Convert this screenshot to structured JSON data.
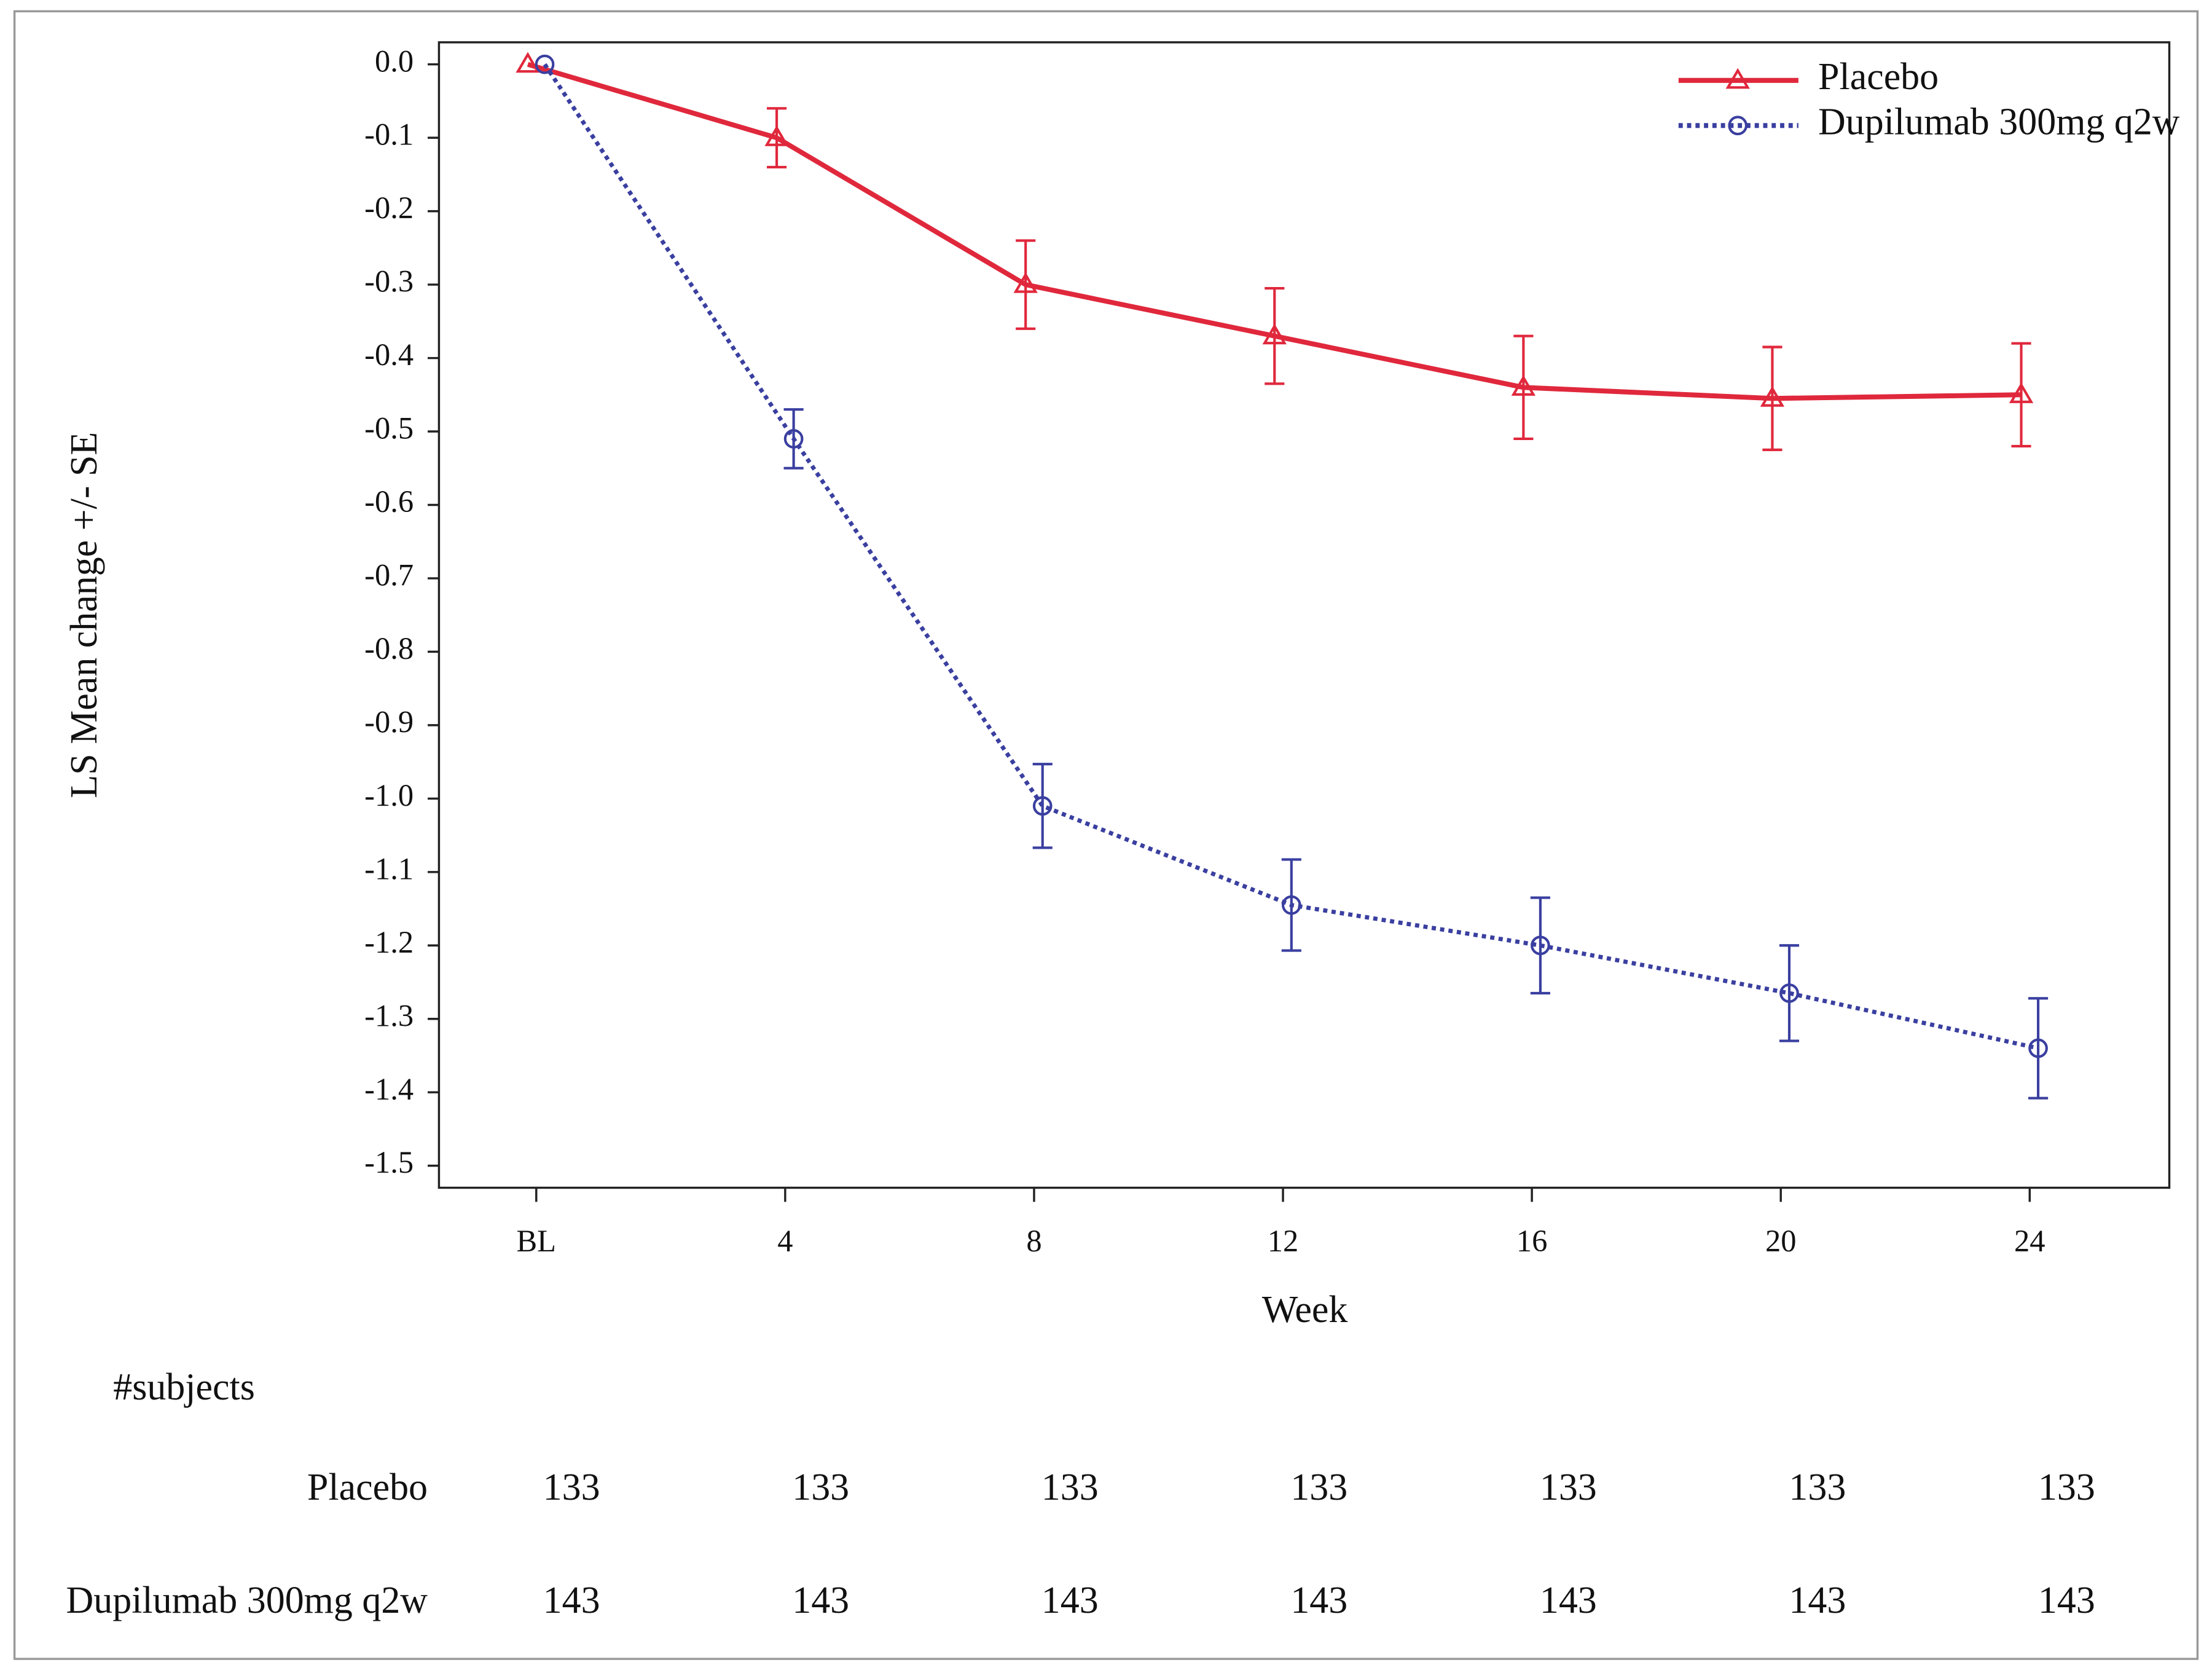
{
  "chart_data": {
    "type": "line",
    "categories": [
      "BL",
      "4",
      "8",
      "12",
      "16",
      "20",
      "24"
    ],
    "x_label": "Week",
    "y_label": "LS Mean change +/- SE",
    "ylim": [
      -1.53,
      0.03
    ],
    "yticks": [
      {
        "value": 0,
        "label": "0.0"
      },
      -0.1,
      -0.2,
      -0.3,
      -0.4,
      -0.5,
      -0.6,
      -0.7,
      -0.8,
      -0.9,
      {
        "value": -1,
        "label": "-1.0"
      },
      -1.1,
      -1.2,
      -1.3,
      -1.4,
      -1.5
    ],
    "legend": "top-right",
    "series": [
      {
        "name": "Placebo",
        "color": "#e0283c",
        "line": "solid",
        "marker": "triangle",
        "values": [
          0,
          -0.1,
          -0.3,
          -0.37,
          -0.44,
          -0.455,
          -0.45
        ],
        "errors": [
          0,
          0.04,
          0.06,
          0.065,
          0.07,
          0.07,
          0.07
        ]
      },
      {
        "name": "Dupilumab 300mg q2w",
        "color": "#3a3fa0",
        "line": "dotted",
        "marker": "circle",
        "values": [
          0,
          -0.51,
          -1.01,
          -1.145,
          -1.2,
          -1.265,
          -1.34
        ],
        "errors": [
          0,
          0.04,
          0.057,
          0.062,
          0.065,
          0.065,
          0.068
        ]
      }
    ],
    "subjects_table": {
      "title": "#subjects",
      "rows": [
        {
          "name": "Placebo",
          "values": [
            133,
            133,
            133,
            133,
            133,
            133,
            133
          ]
        },
        {
          "name": "Dupilumab 300mg q2w",
          "values": [
            143,
            143,
            143,
            143,
            143,
            143,
            143
          ]
        }
      ]
    }
  }
}
